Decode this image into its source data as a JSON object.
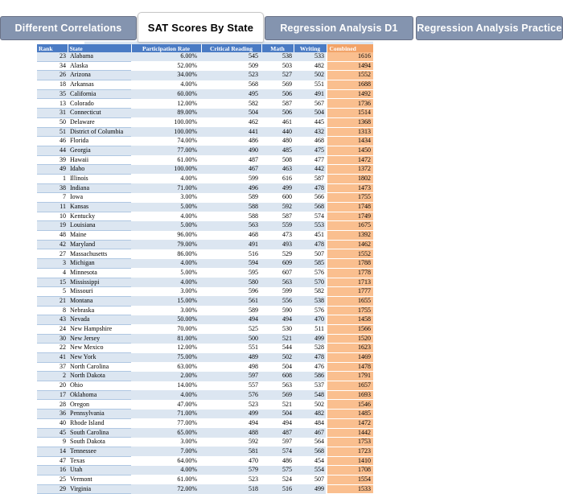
{
  "tabs": [
    {
      "label": "Different Correlations",
      "active": false
    },
    {
      "label": "SAT Scores By State",
      "active": true
    },
    {
      "label": "Regression Analysis D1",
      "active": false
    },
    {
      "label": "Regression Analysis Practice",
      "active": false
    }
  ],
  "table": {
    "columns": [
      "Rank",
      "State",
      "Participation Rate",
      "Critical Reading",
      "Math",
      "Writing",
      "Combined"
    ],
    "rows": [
      [
        "23",
        "Alabama",
        "6.00%",
        "545",
        "538",
        "533",
        "1616"
      ],
      [
        "34",
        "Alaska",
        "52.00%",
        "509",
        "503",
        "482",
        "1494"
      ],
      [
        "26",
        "Arizona",
        "34.00%",
        "523",
        "527",
        "502",
        "1552"
      ],
      [
        "18",
        "Arkansas",
        "4.00%",
        "568",
        "569",
        "551",
        "1688"
      ],
      [
        "35",
        "California",
        "60.00%",
        "495",
        "506",
        "491",
        "1492"
      ],
      [
        "13",
        "Colorado",
        "12.00%",
        "582",
        "587",
        "567",
        "1736"
      ],
      [
        "31",
        "Connecticut",
        "89.00%",
        "504",
        "506",
        "504",
        "1514"
      ],
      [
        "50",
        "Delaware",
        "100.00%",
        "462",
        "461",
        "445",
        "1368"
      ],
      [
        "51",
        "District of Columbia",
        "100.00%",
        "441",
        "440",
        "432",
        "1313"
      ],
      [
        "46",
        "Florida",
        "74.00%",
        "486",
        "480",
        "468",
        "1434"
      ],
      [
        "44",
        "Georgia",
        "77.00%",
        "490",
        "485",
        "475",
        "1450"
      ],
      [
        "39",
        "Hawaii",
        "61.00%",
        "487",
        "508",
        "477",
        "1472"
      ],
      [
        "49",
        "Idaho",
        "100.00%",
        "467",
        "463",
        "442",
        "1372"
      ],
      [
        "1",
        "Illinois",
        "4.00%",
        "599",
        "616",
        "587",
        "1802"
      ],
      [
        "38",
        "Indiana",
        "71.00%",
        "496",
        "499",
        "478",
        "1473"
      ],
      [
        "7",
        "Iowa",
        "3.00%",
        "589",
        "600",
        "566",
        "1755"
      ],
      [
        "11",
        "Kansas",
        "5.00%",
        "588",
        "592",
        "568",
        "1748"
      ],
      [
        "10",
        "Kentucky",
        "4.00%",
        "588",
        "587",
        "574",
        "1749"
      ],
      [
        "19",
        "Louisiana",
        "5.00%",
        "563",
        "559",
        "553",
        "1675"
      ],
      [
        "48",
        "Maine",
        "96.00%",
        "468",
        "473",
        "451",
        "1392"
      ],
      [
        "42",
        "Maryland",
        "79.00%",
        "491",
        "493",
        "478",
        "1462"
      ],
      [
        "27",
        "Massachusetts",
        "86.00%",
        "516",
        "529",
        "507",
        "1552"
      ],
      [
        "3",
        "Michigan",
        "4.00%",
        "594",
        "609",
        "585",
        "1788"
      ],
      [
        "4",
        "Minnesota",
        "5.00%",
        "595",
        "607",
        "576",
        "1778"
      ],
      [
        "15",
        "Mississippi",
        "4.00%",
        "580",
        "563",
        "570",
        "1713"
      ],
      [
        "5",
        "Missouri",
        "3.00%",
        "596",
        "599",
        "582",
        "1777"
      ],
      [
        "21",
        "Montana",
        "15.00%",
        "561",
        "556",
        "538",
        "1655"
      ],
      [
        "8",
        "Nebraska",
        "3.00%",
        "589",
        "590",
        "576",
        "1755"
      ],
      [
        "43",
        "Nevada",
        "50.00%",
        "494",
        "494",
        "470",
        "1458"
      ],
      [
        "24",
        "New Hampshire",
        "70.00%",
        "525",
        "530",
        "511",
        "1566"
      ],
      [
        "30",
        "New Jersey",
        "81.00%",
        "500",
        "521",
        "499",
        "1520"
      ],
      [
        "22",
        "New Mexico",
        "12.00%",
        "551",
        "544",
        "528",
        "1623"
      ],
      [
        "41",
        "New York",
        "75.00%",
        "489",
        "502",
        "478",
        "1469"
      ],
      [
        "37",
        "North Carolina",
        "63.00%",
        "498",
        "504",
        "476",
        "1478"
      ],
      [
        "2",
        "North Dakota",
        "2.00%",
        "597",
        "608",
        "586",
        "1791"
      ],
      [
        "20",
        "Ohio",
        "14.00%",
        "557",
        "563",
        "537",
        "1657"
      ],
      [
        "17",
        "Oklahoma",
        "4.00%",
        "576",
        "569",
        "548",
        "1693"
      ],
      [
        "28",
        "Oregon",
        "47.00%",
        "523",
        "521",
        "502",
        "1546"
      ],
      [
        "36",
        "Pennsylvania",
        "71.00%",
        "499",
        "504",
        "482",
        "1485"
      ],
      [
        "40",
        "Rhode Island",
        "77.00%",
        "494",
        "494",
        "484",
        "1472"
      ],
      [
        "45",
        "South Carolina",
        "65.00%",
        "488",
        "487",
        "467",
        "1442"
      ],
      [
        "9",
        "South Dakota",
        "3.00%",
        "592",
        "597",
        "564",
        "1753"
      ],
      [
        "14",
        "Tennessee",
        "7.00%",
        "581",
        "574",
        "568",
        "1723"
      ],
      [
        "47",
        "Texas",
        "64.00%",
        "470",
        "486",
        "454",
        "1410"
      ],
      [
        "16",
        "Utah",
        "4.00%",
        "579",
        "575",
        "554",
        "1708"
      ],
      [
        "25",
        "Vermont",
        "61.00%",
        "523",
        "524",
        "507",
        "1554"
      ],
      [
        "29",
        "Virginia",
        "72.00%",
        "518",
        "516",
        "499",
        "1533"
      ]
    ]
  },
  "colors": {
    "tab_inactive": "#8494AF",
    "tab_border": "#6A7287",
    "tab_active_bg": "#FFFFFF",
    "header_blue": "#4A7BC4",
    "row_alt_blue": "#DCE6F1",
    "row_border_blue": "#AFC7E2",
    "combined_header_orange": "#F2A368",
    "combined_cell_orange": "#FABF8F"
  }
}
